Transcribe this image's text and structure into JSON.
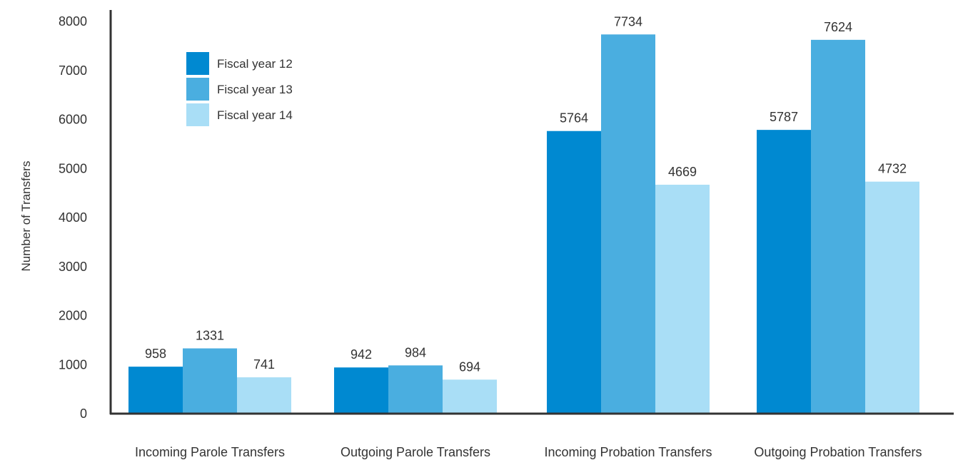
{
  "chart_data": {
    "type": "bar",
    "title": "",
    "xlabel": "",
    "ylabel": "Number of Transfers",
    "ylim": [
      0,
      8000
    ],
    "yticks": [
      0,
      1000,
      2000,
      3000,
      4000,
      5000,
      6000,
      7000,
      8000
    ],
    "grid": false,
    "legend_placement": "top-left",
    "categories": [
      "Incoming Parole Transfers",
      "Outgoing Parole Transfers",
      "Incoming Probation Transfers",
      "Outgoing Probation Transfers"
    ],
    "series": [
      {
        "name": "Fiscal year 12",
        "color": "#0089d1",
        "values": [
          958,
          942,
          5764,
          5787
        ]
      },
      {
        "name": "Fiscal year 13",
        "color": "#4aaee0",
        "values": [
          1331,
          984,
          7734,
          7624
        ]
      },
      {
        "name": "Fiscal year 14",
        "color": "#a9def6",
        "values": [
          741,
          694,
          4669,
          4732
        ]
      }
    ]
  }
}
